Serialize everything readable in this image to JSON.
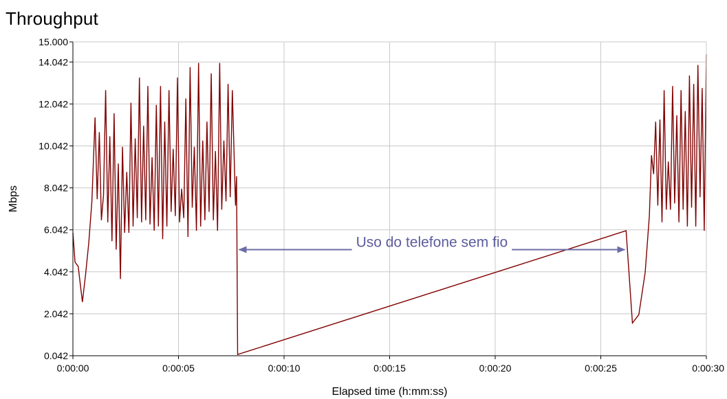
{
  "chart_data": {
    "type": "line",
    "title": "Throughput",
    "xlabel": "Elapsed time (h:mm:ss)",
    "ylabel": "Mbps",
    "xlim": [
      0,
      30
    ],
    "ylim": [
      0.042,
      15.0
    ],
    "x_ticks": [
      {
        "value": 0,
        "label": "0:00:00"
      },
      {
        "value": 5,
        "label": "0:00:05"
      },
      {
        "value": 10,
        "label": "0:00:10"
      },
      {
        "value": 15,
        "label": "0:00:15"
      },
      {
        "value": 20,
        "label": "0:00:20"
      },
      {
        "value": 25,
        "label": "0:00:25"
      },
      {
        "value": 30,
        "label": "0:00:30"
      }
    ],
    "y_ticks": [
      {
        "value": 0.042,
        "label": "0.042"
      },
      {
        "value": 2.042,
        "label": "2.042"
      },
      {
        "value": 4.042,
        "label": "4.042"
      },
      {
        "value": 6.042,
        "label": "6.042"
      },
      {
        "value": 8.042,
        "label": "8.042"
      },
      {
        "value": 10.042,
        "label": "10.042"
      },
      {
        "value": 12.042,
        "label": "12.042"
      },
      {
        "value": 14.042,
        "label": "14.042"
      },
      {
        "value": 15.0,
        "label": "15.000"
      }
    ],
    "grid": true,
    "line_color": "#800000",
    "series": [
      {
        "x": [
          0,
          0.1,
          0.25,
          0.45,
          0.6,
          0.75,
          0.9,
          1.05,
          1.15,
          1.25,
          1.35,
          1.45,
          1.55,
          1.65,
          1.75,
          1.85,
          1.95,
          2.05,
          2.15,
          2.25,
          2.35,
          2.45,
          2.55,
          2.65,
          2.75,
          2.85,
          2.95,
          3.05,
          3.15,
          3.25,
          3.35,
          3.45,
          3.55,
          3.65,
          3.75,
          3.85,
          3.95,
          4.05,
          4.15,
          4.25,
          4.35,
          4.45,
          4.55,
          4.65,
          4.75,
          4.85,
          4.95,
          5.05,
          5.15,
          5.25,
          5.35,
          5.45,
          5.55,
          5.65,
          5.75,
          5.85,
          5.95,
          6.05,
          6.15,
          6.25,
          6.35,
          6.45,
          6.55,
          6.65,
          6.75,
          6.85,
          6.95,
          7.05,
          7.15,
          7.25,
          7.35,
          7.45,
          7.55,
          7.7,
          7.75,
          7.8,
          26.2,
          26.5,
          26.8,
          27.1,
          27.3,
          27.4,
          27.5,
          27.6,
          27.7,
          27.8,
          27.9,
          28.0,
          28.1,
          28.2,
          28.3,
          28.4,
          28.5,
          28.6,
          28.7,
          28.8,
          28.9,
          29.0,
          29.1,
          29.2,
          29.3,
          29.4,
          29.5,
          29.6,
          29.7,
          29.8,
          29.9,
          30.0
        ],
        "values": [
          5.9,
          4.5,
          4.3,
          2.6,
          3.9,
          5.4,
          7.4,
          11.4,
          7.5,
          10.7,
          6.5,
          7.7,
          12.7,
          6.4,
          10.5,
          5.5,
          11.6,
          5.1,
          9.2,
          3.7,
          10.0,
          5.9,
          8.8,
          5.9,
          12.1,
          6.2,
          10.4,
          6.6,
          13.3,
          6.4,
          11.0,
          6.5,
          12.9,
          6.3,
          9.5,
          6.0,
          12.0,
          6.2,
          12.9,
          5.6,
          11.2,
          6.2,
          12.7,
          6.9,
          9.9,
          6.7,
          13.3,
          6.4,
          8.0,
          6.6,
          12.3,
          5.7,
          13.8,
          7.1,
          10.0,
          6.0,
          14.0,
          6.2,
          10.3,
          6.5,
          11.2,
          6.9,
          13.5,
          6.5,
          9.8,
          6.0,
          14.0,
          7.0,
          10.3,
          7.4,
          13.0,
          7.6,
          12.7,
          7.2,
          8.6,
          0.1,
          6.0,
          1.6,
          2.0,
          4.0,
          6.7,
          9.6,
          8.7,
          11.2,
          7.2,
          11.3,
          6.4,
          12.7,
          7.0,
          9.3,
          7.0,
          12.9,
          7.3,
          11.5,
          6.4,
          12.7,
          7.0,
          11.7,
          6.2,
          13.4,
          7.1,
          13.0,
          6.2,
          13.9,
          7.6,
          12.8,
          6.0,
          14.4
        ]
      }
    ],
    "annotations": [
      {
        "text": "Uso do telefone sem fio",
        "from_x": 7.8,
        "to_x": 26.2,
        "y": 5.1
      }
    ]
  }
}
